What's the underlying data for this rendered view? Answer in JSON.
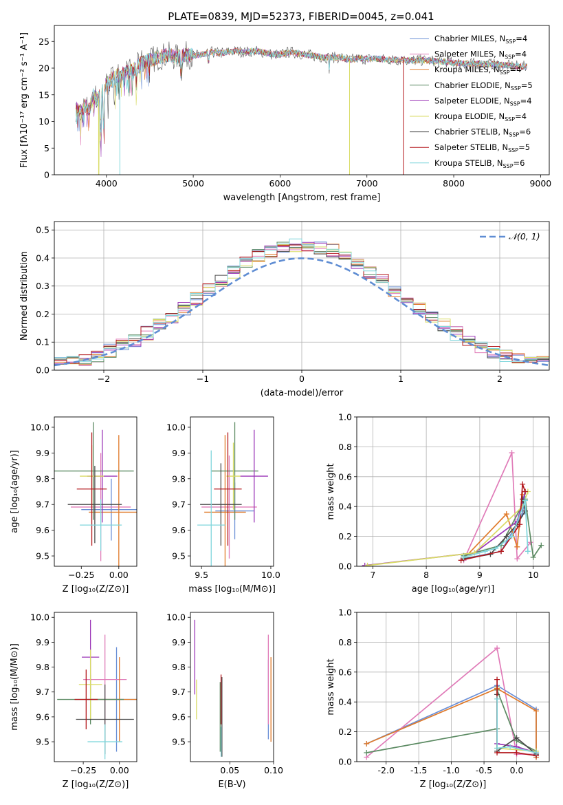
{
  "chart_data": [
    {
      "id": "spectrum",
      "type": "line",
      "title": "PLATE=0839, MJD=52373, FIBERID=0045, z=0.041",
      "xlabel": "wavelength [Angstrom, rest frame]",
      "ylabel": "Flux [fλ10⁻¹⁷ erg cm⁻² s⁻¹ A⁻¹]",
      "xlim": [
        3400,
        9100
      ],
      "ylim": [
        0,
        28
      ],
      "xticks": [
        4000,
        5000,
        6000,
        7000,
        8000,
        9000
      ],
      "yticks": [
        0,
        5,
        10,
        15,
        20,
        25
      ],
      "grid": false,
      "legend_position": "top-right",
      "envelope": {
        "x": [
          3650,
          3700,
          3750,
          3800,
          3850,
          3900,
          3950,
          4000,
          4100,
          4200,
          4300,
          4400,
          4500,
          4600,
          4700,
          4800,
          4900,
          5000,
          5100,
          5200,
          5300,
          5400,
          5500,
          5600,
          5700,
          5800,
          5900,
          6000,
          6100,
          6200,
          6300,
          6400,
          6500,
          6600,
          6700,
          6800,
          6900,
          7000,
          7100,
          7200,
          7300,
          7400,
          7500,
          7600,
          7700,
          7800,
          7900,
          8000,
          8200,
          8400,
          8600,
          8800
        ],
        "y": [
          12.5,
          11.5,
          13.0,
          12.0,
          15.0,
          14.0,
          15.5,
          17.0,
          18.5,
          19.0,
          19.5,
          21.0,
          21.5,
          22.0,
          22.5,
          22.0,
          22.5,
          22.3,
          22.5,
          23.0,
          22.8,
          23.0,
          23.2,
          23.0,
          23.2,
          23.0,
          22.6,
          22.5,
          23.0,
          22.8,
          22.5,
          22.3,
          22.0,
          22.0,
          22.0,
          21.5,
          21.8,
          21.7,
          21.8,
          21.6,
          21.5,
          21.6,
          21.4,
          21.5,
          21.4,
          21.3,
          21.2,
          21.0,
          20.8,
          20.8,
          20.5,
          20.3
        ]
      },
      "series": [
        {
          "name": "Chabrier MILES, N_SSP=4",
          "label": "Chabrier MILES, N",
          "nssp": "=4",
          "color": "#6a8fd6"
        },
        {
          "name": "Salpeter MILES, N_SSP=4",
          "label": "Salpeter MILES, N",
          "nssp": "=4",
          "color": "#e07bb8"
        },
        {
          "name": "Kroupa MILES, N_SSP=4",
          "label": "Kroupa MILES, N",
          "nssp": "=4",
          "color": "#e07a2a"
        },
        {
          "name": "Chabrier ELODIE, N_SSP=5",
          "label": "Chabrier ELODIE, N",
          "nssp": "=5",
          "color": "#5b8a62"
        },
        {
          "name": "Salpeter ELODIE, N_SSP=4",
          "label": "Salpeter ELODIE, N",
          "nssp": "=4",
          "color": "#9b36b7"
        },
        {
          "name": "Kroupa ELODIE, N_SSP=4",
          "label": "Kroupa ELODIE, N",
          "nssp": "=4",
          "color": "#d8db63"
        },
        {
          "name": "Chabrier STELIB, N_SSP=6",
          "label": "Chabrier STELIB, N",
          "nssp": "=6",
          "color": "#4a4a4a"
        },
        {
          "name": "Salpeter STELIB, N_SSP=5",
          "label": "Salpeter STELIB, N",
          "nssp": "=5",
          "color": "#b3171b"
        },
        {
          "name": "Kroupa STELIB, N_SSP=6",
          "label": "Kroupa STELIB, N",
          "nssp": "=6",
          "color": "#7fd6dc"
        }
      ],
      "legend_subscript": "SSP"
    },
    {
      "id": "residuals",
      "type": "histogram",
      "xlabel": "(data-model)/error",
      "ylabel": "Normed distribution",
      "xlim": [
        -2.5,
        2.5
      ],
      "ylim": [
        0,
        0.53
      ],
      "xticks": [
        -2,
        -1,
        0,
        1,
        2
      ],
      "yticks": [
        0.0,
        0.1,
        0.2,
        0.3,
        0.4,
        0.5
      ],
      "grid": true,
      "reference_curve": {
        "name": "𝒩(0, 1)",
        "color": "#5f8dd3",
        "style": "dashed"
      },
      "bin_count": 40,
      "legend_position": "top-right"
    },
    {
      "id": "z_age",
      "type": "errorbar",
      "xlabel": "Z [log₁₀(Z/Z⊙)]",
      "ylabel": "age  [log₁₀(age/yr)]",
      "xlim": [
        -0.43,
        0.12
      ],
      "ylim": [
        9.46,
        10.04
      ],
      "xticks": [
        -0.25,
        0.0
      ],
      "yticks": [
        9.5,
        9.6,
        9.7,
        9.8,
        9.9,
        10.0
      ],
      "points": [
        {
          "s": 0,
          "x": -0.05,
          "y": 9.68,
          "xerr": 0.2,
          "yerr": 0.12
        },
        {
          "s": 1,
          "x": -0.12,
          "y": 9.69,
          "xerr": 0.2,
          "yerr": 0.21
        },
        {
          "s": 2,
          "x": 0.0,
          "y": 9.67,
          "xerr": 0.2,
          "yerr": 0.3
        },
        {
          "s": 3,
          "x": -0.17,
          "y": 9.83,
          "xerr": 0.27,
          "yerr": 0.19
        },
        {
          "s": 4,
          "x": -0.11,
          "y": 9.81,
          "xerr": 0.1,
          "yerr": 0.18
        },
        {
          "s": 5,
          "x": -0.18,
          "y": 9.81,
          "xerr": 0.08,
          "yerr": 0.12
        },
        {
          "s": 6,
          "x": -0.16,
          "y": 9.7,
          "xerr": 0.18,
          "yerr": 0.15
        },
        {
          "s": 7,
          "x": -0.18,
          "y": 9.76,
          "xerr": 0.1,
          "yerr": 0.22
        },
        {
          "s": 8,
          "x": -0.12,
          "y": 9.62,
          "xerr": 0.14,
          "yerr": 0.1
        }
      ]
    },
    {
      "id": "mass_age",
      "type": "errorbar",
      "xlabel": "mass [log₁₀(M/M⊙)]",
      "ylabel": "",
      "xlim": [
        9.42,
        10.02
      ],
      "ylim": [
        9.46,
        10.04
      ],
      "xticks": [
        9.5,
        10.0
      ],
      "yticks": [
        9.5,
        9.6,
        9.7,
        9.8,
        9.9,
        10.0
      ],
      "points": [
        {
          "s": 0,
          "x": 9.74,
          "y": 9.675,
          "xerr": 0.14,
          "yerr": 0.11
        },
        {
          "s": 1,
          "x": 9.7,
          "y": 9.69,
          "xerr": 0.2,
          "yerr": 0.2
        },
        {
          "s": 2,
          "x": 9.67,
          "y": 9.67,
          "xerr": 0.15,
          "yerr": 0.3
        },
        {
          "s": 3,
          "x": 9.74,
          "y": 9.83,
          "xerr": 0.17,
          "yerr": 0.19
        },
        {
          "s": 4,
          "x": 9.88,
          "y": 9.81,
          "xerr": 0.1,
          "yerr": 0.18
        },
        {
          "s": 5,
          "x": 9.73,
          "y": 9.81,
          "xerr": 0.05,
          "yerr": 0.13
        },
        {
          "s": 6,
          "x": 9.64,
          "y": 9.7,
          "xerr": 0.15,
          "yerr": 0.16
        },
        {
          "s": 7,
          "x": 9.69,
          "y": 9.76,
          "xerr": 0.1,
          "yerr": 0.22
        },
        {
          "s": 8,
          "x": 9.57,
          "y": 9.62,
          "xerr": 0.1,
          "yerr": 0.29
        }
      ]
    },
    {
      "id": "age_weight",
      "type": "line",
      "xlabel": "age  [log₁₀(age/yr)]",
      "ylabel": "mass weight",
      "xlim": [
        6.7,
        10.3
      ],
      "ylim": [
        0,
        1.0
      ],
      "xticks": [
        7,
        8,
        9,
        10
      ],
      "yticks": [
        0.0,
        0.2,
        0.4,
        0.6,
        0.8,
        1.0
      ],
      "grid": true,
      "series": [
        {
          "s": 0,
          "x": [
            8.7,
            9.4,
            9.8,
            9.85
          ],
          "y": [
            0.05,
            0.1,
            0.35,
            0.5
          ]
        },
        {
          "s": 1,
          "x": [
            8.7,
            9.6,
            9.7,
            9.95
          ],
          "y": [
            0.04,
            0.76,
            0.05,
            0.16
          ]
        },
        {
          "s": 2,
          "x": [
            8.7,
            9.5,
            9.7,
            9.8
          ],
          "y": [
            0.05,
            0.35,
            0.13,
            0.48
          ]
        },
        {
          "s": 3,
          "x": [
            8.7,
            9.4,
            9.85,
            10.0,
            10.15
          ],
          "y": [
            0.07,
            0.14,
            0.45,
            0.06,
            0.14
          ]
        },
        {
          "s": 4,
          "x": [
            6.85,
            8.9,
            9.7,
            9.85
          ],
          "y": [
            0.005,
            0.09,
            0.3,
            0.5
          ]
        },
        {
          "s": 5,
          "x": [
            6.9,
            8.9,
            9.8,
            9.9
          ],
          "y": [
            0.005,
            0.09,
            0.4,
            0.5
          ]
        },
        {
          "s": 6,
          "x": [
            8.7,
            9.2,
            9.5,
            9.7,
            9.85,
            9.8
          ],
          "y": [
            0.05,
            0.08,
            0.2,
            0.28,
            0.37,
            0.45
          ]
        },
        {
          "s": 7,
          "x": [
            8.65,
            9.4,
            9.75,
            9.8,
            9.85
          ],
          "y": [
            0.04,
            0.1,
            0.28,
            0.55,
            0.5
          ]
        },
        {
          "s": 8,
          "x": [
            8.7,
            9.1,
            9.3,
            9.6,
            9.85,
            9.9
          ],
          "y": [
            0.06,
            0.1,
            0.12,
            0.2,
            0.44,
            0.1
          ]
        }
      ]
    },
    {
      "id": "z_mass",
      "type": "errorbar",
      "xlabel": "Z [log₁₀(Z/Z⊙)]",
      "ylabel": "mass [log₁₀(M/M⊙)]",
      "xlim": [
        -0.45,
        0.12
      ],
      "ylim": [
        9.42,
        10.02
      ],
      "xticks": [
        -0.25,
        0.0
      ],
      "yticks": [
        9.5,
        9.6,
        9.7,
        9.8,
        9.9,
        10.0
      ],
      "points": [
        {
          "s": 0,
          "x": -0.02,
          "y": 9.67,
          "xerr": 0.2,
          "yerr": 0.21
        },
        {
          "s": 1,
          "x": -0.1,
          "y": 9.75,
          "xerr": 0.15,
          "yerr": 0.18
        },
        {
          "s": 2,
          "x": 0.0,
          "y": 9.67,
          "xerr": 0.2,
          "yerr": 0.17
        },
        {
          "s": 3,
          "x": -0.2,
          "y": 9.67,
          "xerr": 0.23,
          "yerr": 0.1
        },
        {
          "s": 4,
          "x": -0.2,
          "y": 9.84,
          "xerr": 0.06,
          "yerr": 0.15
        },
        {
          "s": 5,
          "x": -0.2,
          "y": 9.73,
          "xerr": 0.08,
          "yerr": 0.14
        },
        {
          "s": 6,
          "x": -0.1,
          "y": 9.59,
          "xerr": 0.2,
          "yerr": 0.14
        },
        {
          "s": 7,
          "x": -0.23,
          "y": 9.67,
          "xerr": 0.08,
          "yerr": 0.12
        },
        {
          "s": 8,
          "x": -0.1,
          "y": 9.5,
          "xerr": 0.12,
          "yerr": 0.07
        }
      ]
    },
    {
      "id": "ebv_mass",
      "type": "errorbar",
      "xlabel": "E(B-V)",
      "ylabel": "",
      "xlim": [
        0.005,
        0.1
      ],
      "ylim": [
        9.42,
        10.02
      ],
      "xticks": [
        0.05,
        0.1
      ],
      "yticks": [
        9.5,
        9.6,
        9.7,
        9.8,
        9.9,
        10.0
      ],
      "points": [
        {
          "s": 0,
          "x": 0.094,
          "y": 9.67,
          "xerr": 0,
          "yerr": 0.16
        },
        {
          "s": 1,
          "x": 0.094,
          "y": 9.75,
          "xerr": 0,
          "yerr": 0.18
        },
        {
          "s": 2,
          "x": 0.097,
          "y": 9.67,
          "xerr": 0,
          "yerr": 0.17
        },
        {
          "s": 3,
          "x": 0.039,
          "y": 9.6,
          "xerr": 0,
          "yerr": 0.14
        },
        {
          "s": 4,
          "x": 0.01,
          "y": 9.84,
          "xerr": 0,
          "yerr": 0.15
        },
        {
          "s": 5,
          "x": 0.012,
          "y": 9.67,
          "xerr": 0,
          "yerr": 0.08
        },
        {
          "s": 6,
          "x": 0.041,
          "y": 9.6,
          "xerr": 0,
          "yerr": 0.16
        },
        {
          "s": 7,
          "x": 0.04,
          "y": 9.67,
          "xerr": 0,
          "yerr": 0.1
        },
        {
          "s": 8,
          "x": 0.04,
          "y": 9.5,
          "xerr": 0,
          "yerr": 0.06
        }
      ]
    },
    {
      "id": "z_weight",
      "type": "line",
      "xlabel": "Z [log₁₀(Z/Z⊙)]",
      "ylabel": "mass weight",
      "xlim": [
        -2.45,
        0.5
      ],
      "ylim": [
        0,
        1.0
      ],
      "xticks": [
        -2.0,
        -1.5,
        -1.0,
        -0.5,
        0.0
      ],
      "yticks": [
        0.0,
        0.2,
        0.4,
        0.6,
        0.8,
        1.0
      ],
      "grid": true,
      "series": [
        {
          "s": 0,
          "x": [
            -2.3,
            -0.3,
            0.3,
            0.3
          ],
          "y": [
            0.12,
            0.51,
            0.35,
            0.03
          ]
        },
        {
          "s": 1,
          "x": [
            -2.3,
            -0.3,
            0.0,
            0.3
          ],
          "y": [
            0.03,
            0.76,
            0.05,
            0.05
          ]
        },
        {
          "s": 2,
          "x": [
            -2.3,
            -0.3,
            0.3,
            0.3
          ],
          "y": [
            0.12,
            0.49,
            0.34,
            0.03
          ]
        },
        {
          "s": 3,
          "x": [
            -2.3,
            -0.3,
            -0.3,
            0.0,
            0.3
          ],
          "y": [
            0.06,
            0.22,
            0.48,
            0.14,
            0.07
          ]
        },
        {
          "s": 4,
          "x": [
            -0.3,
            -0.3,
            0.0,
            0.3
          ],
          "y": [
            0.5,
            0.12,
            0.1,
            0.06
          ]
        },
        {
          "s": 5,
          "x": [
            -0.3,
            -0.3,
            0.3
          ],
          "y": [
            0.5,
            0.09,
            0.07
          ]
        },
        {
          "s": 6,
          "x": [
            -0.3,
            -0.3,
            0.0,
            0.3
          ],
          "y": [
            0.45,
            0.07,
            0.16,
            0.05
          ]
        },
        {
          "s": 7,
          "x": [
            -0.3,
            -0.3,
            0.0,
            0.3
          ],
          "y": [
            0.55,
            0.06,
            0.06,
            0.04
          ]
        },
        {
          "s": 8,
          "x": [
            -0.3,
            -0.3,
            -0.1,
            0.3
          ],
          "y": [
            0.42,
            0.09,
            0.1,
            0.06
          ]
        }
      ]
    }
  ]
}
